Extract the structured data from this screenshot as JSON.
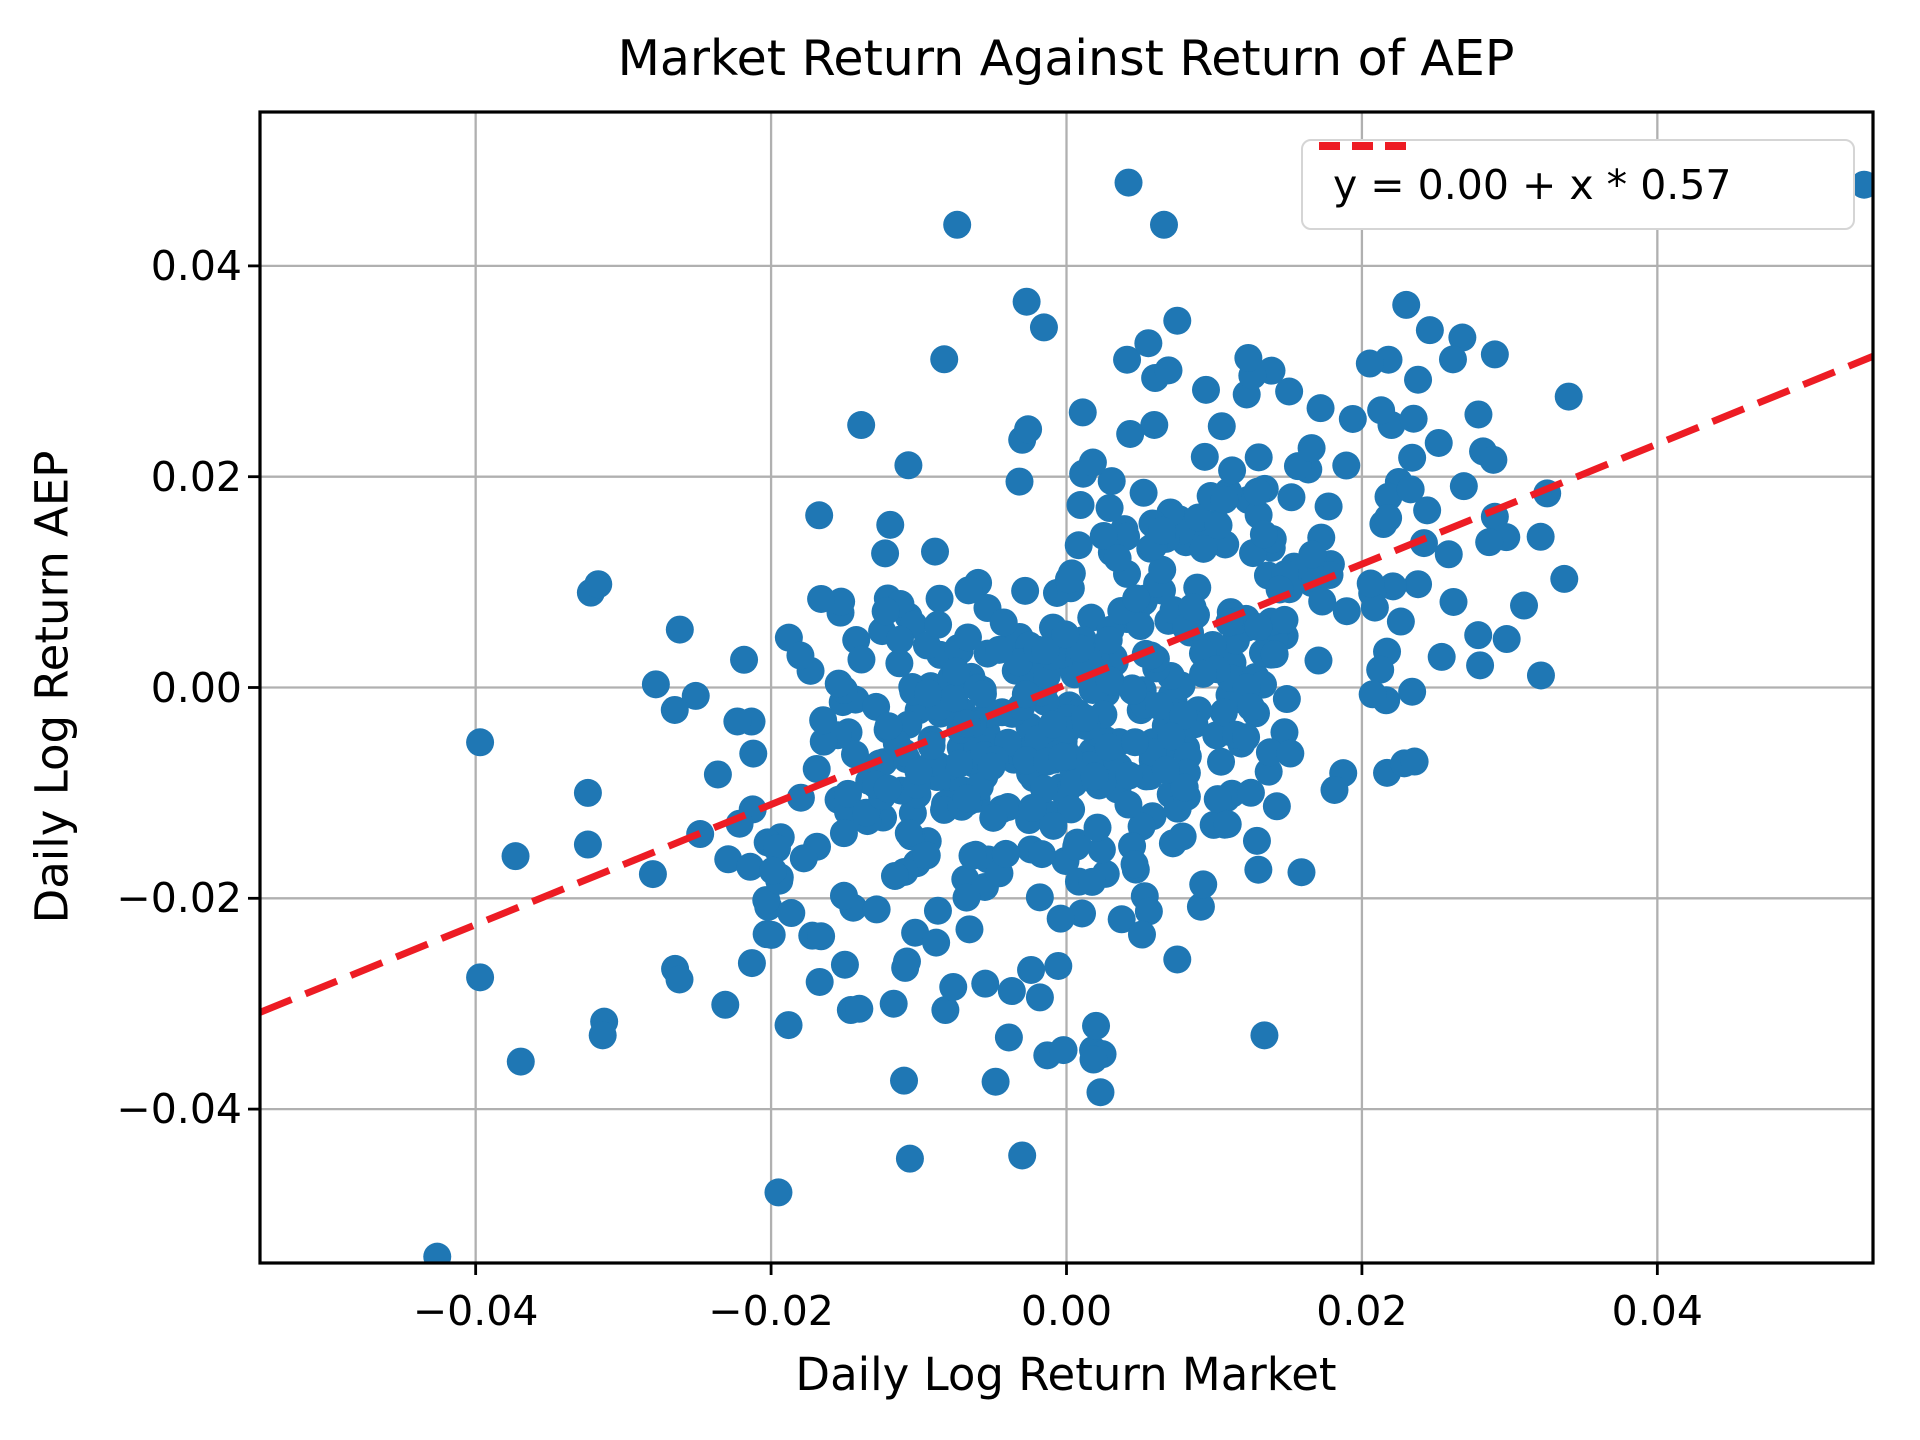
{
  "figure": {
    "title": "Market Return Against Return of AEP",
    "background": "#ffffff"
  },
  "legend": {
    "position": "upper right",
    "label": "y = 0.00 + x * 0.57"
  },
  "chart_data": {
    "type": "scatter",
    "title": "Market Return Against Return of AEP",
    "xlabel": "Daily Log Return Market",
    "ylabel": "Daily Log Return AEP",
    "xlim": [
      -0.0546,
      0.0546
    ],
    "ylim": [
      -0.0546,
      0.0546
    ],
    "grid": true,
    "grid_color": "#b0b0b0",
    "spine_color": "#000000",
    "x_ticks": {
      "values": [
        -0.04,
        -0.02,
        0.0,
        0.02,
        0.04
      ],
      "labels": [
        "−0.04",
        "−0.02",
        "0.00",
        "0.02",
        "0.04"
      ]
    },
    "y_ticks": {
      "values": [
        -0.04,
        -0.02,
        0.0,
        0.02,
        0.04
      ],
      "labels": [
        "−0.04",
        "−0.02",
        "0.00",
        "0.02",
        "0.04"
      ]
    },
    "marker": {
      "color": "#1f77b4",
      "radius_px": 14
    },
    "trendline": {
      "label": "y = 0.00 + x * 0.57",
      "intercept": 0.0003,
      "slope": 0.57,
      "color": "#ed1c24",
      "dash": [
        34,
        15
      ],
      "width": 7
    },
    "points": [
      [
        0.0042,
        0.0479
      ],
      [
        -0.0074,
        0.0439
      ],
      [
        0.0066,
        0.0439
      ],
      [
        0.054,
        0.0477
      ],
      [
        -0.0027,
        0.0366
      ],
      [
        0.023,
        0.0363
      ],
      [
        0.0246,
        0.0339
      ],
      [
        0.0122,
        0.0278
      ],
      [
        0.0172,
        0.0265
      ],
      [
        0.0011,
        0.0261
      ],
      [
        -0.003,
        0.0235
      ],
      [
        -0.0139,
        0.0249
      ],
      [
        -0.0026,
        0.0245
      ],
      [
        0.0075,
        0.0348
      ],
      [
        0.0041,
        0.0311
      ],
      [
        0.022,
        0.0249
      ],
      [
        0.0235,
        0.0255
      ],
      [
        0.0268,
        0.0332
      ],
      [
        0.029,
        0.0316
      ],
      [
        0.0218,
        0.0311
      ],
      [
        0.034,
        0.0276
      ],
      [
        0.0213,
        0.0263
      ],
      [
        0.0252,
        0.0232
      ],
      [
        0.0282,
        0.0224
      ],
      [
        0.0289,
        0.0216
      ],
      [
        0.0234,
        0.0218
      ],
      [
        0.0225,
        0.0195
      ],
      [
        0.0218,
        0.0181
      ],
      [
        0.0233,
        0.0188
      ],
      [
        0.0269,
        0.0191
      ],
      [
        0.0321,
        0.0143
      ],
      [
        0.0337,
        0.0103
      ],
      [
        0.029,
        0.0162
      ],
      [
        0.0242,
        0.0137
      ],
      [
        0.0238,
        0.0098
      ],
      [
        0.0221,
        0.0096
      ],
      [
        0.0298,
        0.0046
      ],
      [
        0.0217,
        0.0034
      ],
      [
        0.0234,
        -0.0004
      ],
      [
        0.0217,
        -0.0081
      ],
      [
        0.0254,
        0.0029
      ],
      [
        0.028,
        0.0021
      ],
      [
        0.016,
        0.0109
      ],
      [
        0.0179,
        0.0117
      ],
      [
        0.0123,
        0.0178
      ],
      [
        0.0238,
        0.0292
      ],
      [
        -0.0322,
        0.009
      ],
      [
        -0.0317,
        0.0098
      ],
      [
        -0.0278,
        0.0003
      ],
      [
        -0.0397,
        -0.0052
      ],
      [
        -0.0324,
        -0.01
      ],
      [
        -0.0373,
        -0.016
      ],
      [
        -0.0324,
        -0.0149
      ],
      [
        -0.028,
        -0.0177
      ],
      [
        -0.0397,
        -0.0275
      ],
      [
        -0.0313,
        -0.0317
      ],
      [
        -0.0265,
        -0.0267
      ],
      [
        -0.0262,
        -0.0277
      ],
      [
        -0.0231,
        -0.0301
      ],
      [
        -0.0314,
        -0.033
      ],
      [
        -0.0426,
        -0.054
      ],
      [
        -0.0251,
        -0.0008
      ],
      [
        -0.0153,
        0.0071
      ],
      [
        -0.0229,
        -0.0163
      ],
      [
        -0.0248,
        -0.0139
      ],
      [
        -0.0195,
        -0.0479
      ],
      [
        -0.0106,
        -0.0447
      ],
      [
        -0.003,
        -0.0444
      ],
      [
        -0.011,
        -0.0373
      ],
      [
        -0.0048,
        -0.0374
      ],
      [
        -0.0013,
        -0.0349
      ],
      [
        -0.0039,
        -0.0332
      ],
      [
        -0.0002,
        -0.0344
      ],
      [
        0.0018,
        -0.0344
      ],
      [
        -0.0146,
        -0.0306
      ],
      [
        -0.0117,
        -0.03
      ],
      [
        -0.0082,
        -0.0306
      ],
      [
        -0.0055,
        -0.0281
      ],
      [
        -0.015,
        -0.0263
      ],
      [
        -0.0108,
        -0.026
      ],
      [
        -0.0037,
        -0.0288
      ],
      [
        -0.0024,
        -0.0268
      ],
      [
        -0.0018,
        -0.0294
      ],
      [
        0.0075,
        -0.0258
      ],
      [
        0.0053,
        -0.0198
      ],
      [
        0.0091,
        -0.0208
      ],
      [
        0.0134,
        -0.033
      ],
      [
        0.0023,
        -0.0384
      ],
      [
        0.002,
        -0.0321
      ],
      [
        -0.0203,
        -0.0234
      ]
    ],
    "cluster": {
      "description": "dense central mass of daily-return points, approximated by a correlated bivariate normal distribution",
      "count": 520,
      "seed": 7,
      "center": [
        0.0008,
        -0.0005
      ],
      "sd": [
        0.0105,
        0.0125
      ],
      "rho": 0.45
    }
  }
}
